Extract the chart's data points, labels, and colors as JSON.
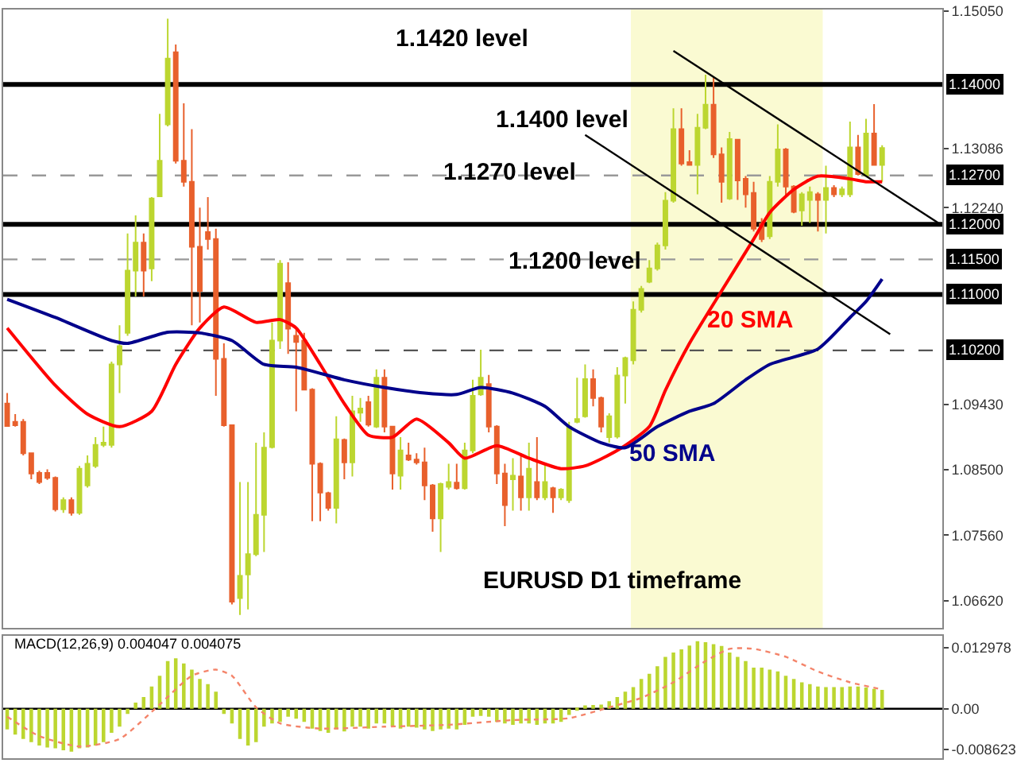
{
  "chart_data": [
    {
      "type": "candlestick",
      "categories": [
        null,
        null,
        null,
        null,
        null,
        null,
        null,
        null,
        null,
        null,
        null,
        null,
        null,
        null,
        null,
        null,
        null,
        null,
        null,
        null,
        null,
        null,
        null,
        null,
        null,
        null,
        null,
        null,
        null,
        null,
        null,
        null,
        null,
        null,
        null,
        null,
        null,
        null,
        null,
        null,
        null,
        null,
        null,
        null,
        null,
        null,
        null,
        null,
        null,
        null,
        null,
        null,
        null,
        null,
        null,
        null,
        null,
        null,
        null,
        null,
        null,
        null,
        null,
        null,
        null,
        null,
        null,
        null,
        null,
        null,
        null,
        null,
        null,
        null,
        null,
        null,
        null,
        null,
        null,
        null,
        null,
        null,
        null,
        null,
        null,
        null,
        null,
        null,
        null,
        null,
        null,
        null,
        null,
        null,
        null,
        null,
        null,
        null,
        null,
        null,
        null,
        null,
        null,
        null,
        null,
        null,
        null,
        null,
        null,
        null,
        null,
        null,
        null,
        null,
        null,
        null,
        null
      ],
      "ohlc": [
        [
          1.0944,
          1.0959,
          1.0911,
          1.0912
        ],
        [
          1.0918,
          1.0929,
          1.0911,
          1.0913
        ],
        [
          1.0918,
          1.0922,
          1.087,
          1.0873
        ],
        [
          1.0873,
          1.0874,
          1.0836,
          1.0844
        ],
        [
          1.0845,
          1.0848,
          1.0829,
          1.0832
        ],
        [
          1.0845,
          1.085,
          1.0835,
          1.0838
        ],
        [
          1.0838,
          1.084,
          1.079,
          1.0793
        ],
        [
          1.0793,
          1.081,
          1.0788,
          1.0806
        ],
        [
          1.0806,
          1.081,
          1.0784,
          1.0788
        ],
        [
          1.0788,
          1.0855,
          1.0785,
          1.0851
        ],
        [
          1.0827,
          1.087,
          1.0824,
          1.0858
        ],
        [
          1.0855,
          1.0896,
          1.0852,
          1.0885
        ],
        [
          1.0885,
          1.0911,
          1.0882,
          1.0888
        ],
        [
          1.0885,
          1.1004,
          1.0881,
          1.1
        ],
        [
          1.1,
          1.1056,
          1.0959,
          1.1026
        ],
        [
          1.1045,
          1.1187,
          1.1041,
          1.1134
        ],
        [
          1.1134,
          1.1213,
          1.1097,
          1.1174
        ],
        [
          1.1174,
          1.1187,
          1.1097,
          1.1134
        ],
        [
          1.1137,
          1.1239,
          1.1119,
          1.1237
        ],
        [
          1.124,
          1.1358,
          1.1239,
          1.1291
        ],
        [
          1.1343,
          1.1494,
          1.134,
          1.1437
        ],
        [
          1.1446,
          1.1457,
          1.1287,
          1.1291
        ],
        [
          1.1291,
          1.1373,
          1.1254,
          1.1261
        ],
        [
          1.1261,
          1.1336,
          1.1056,
          1.1168
        ],
        [
          1.1168,
          1.1224,
          1.106,
          1.1105
        ],
        [
          1.1189,
          1.1239,
          1.1164,
          1.1179
        ],
        [
          1.1179,
          1.1194,
          1.0955,
          1.1008
        ],
        [
          1.1008,
          1.103,
          1.0911,
          1.0913
        ],
        [
          1.0913,
          1.0913,
          1.0657,
          1.0661
        ],
        [
          1.0666,
          1.0832,
          1.0642,
          1.0698
        ],
        [
          1.07,
          1.0832,
          1.065,
          1.0729
        ],
        [
          1.0729,
          1.0888,
          1.0726,
          1.0785
        ],
        [
          1.0785,
          1.0903,
          1.0732,
          1.0881
        ],
        [
          1.0882,
          1.106,
          1.088,
          1.1034
        ],
        [
          1.1034,
          1.1149,
          1.1022,
          1.1144
        ],
        [
          1.1116,
          1.1146,
          1.1015,
          1.1051
        ],
        [
          1.1041,
          1.1052,
          1.0933,
          1.1032
        ],
        [
          1.1034,
          1.1045,
          1.0963,
          1.0964
        ],
        [
          1.0964,
          1.0966,
          1.0776,
          1.0858
        ],
        [
          1.0858,
          1.086,
          1.0776,
          1.0817
        ],
        [
          1.0816,
          1.0818,
          1.0791,
          1.0795
        ],
        [
          1.0795,
          1.0926,
          1.0773,
          1.0893
        ],
        [
          1.0892,
          1.0894,
          1.0836,
          1.086
        ],
        [
          1.086,
          1.0955,
          1.084,
          1.0933
        ],
        [
          1.0931,
          1.0952,
          1.0918,
          1.0937
        ],
        [
          1.0946,
          1.0955,
          1.0911,
          1.0914
        ],
        [
          1.0911,
          1.0993,
          1.0909,
          1.0981
        ],
        [
          1.0981,
          1.0993,
          1.0903,
          1.0911
        ],
        [
          1.0911,
          1.0912,
          1.0821,
          1.0844
        ],
        [
          1.0841,
          1.0896,
          1.0821,
          1.0877
        ],
        [
          1.087,
          1.0888,
          1.0862,
          1.0864
        ],
        [
          1.0864,
          1.0873,
          1.0857,
          1.086
        ],
        [
          1.086,
          1.0881,
          1.0806,
          1.0827
        ],
        [
          1.0827,
          1.0829,
          1.0761,
          1.078
        ],
        [
          1.078,
          1.0831,
          1.0732,
          1.0829
        ],
        [
          1.0825,
          1.0858,
          1.0821,
          1.0832
        ],
        [
          1.0831,
          1.0858,
          1.0821,
          1.0823
        ],
        [
          1.0823,
          1.0888,
          1.0821,
          1.0877
        ],
        [
          1.0877,
          1.0978,
          1.0873,
          1.0955
        ],
        [
          1.0957,
          1.1021,
          1.0955,
          1.0981
        ],
        [
          1.0972,
          1.0985,
          1.0903,
          1.0911
        ],
        [
          1.0911,
          1.0913,
          1.0829,
          1.0844
        ],
        [
          1.0844,
          1.0858,
          1.0769,
          1.0799
        ],
        [
          1.0836,
          1.0866,
          1.0791,
          1.0841
        ],
        [
          1.084,
          1.0873,
          1.0791,
          1.081
        ],
        [
          1.081,
          1.0888,
          1.0791,
          1.0851
        ],
        [
          1.0832,
          1.0896,
          1.0806,
          1.081
        ],
        [
          1.081,
          1.0858,
          1.0806,
          1.0832
        ],
        [
          1.0823,
          1.0825,
          1.0788,
          1.081
        ],
        [
          1.081,
          1.0823,
          1.0806,
          1.0821
        ],
        [
          1.0806,
          1.0918,
          1.0802,
          1.0911
        ],
        [
          1.0918,
          1.0981,
          1.0916,
          1.0922
        ],
        [
          1.0926,
          1.1,
          1.0924,
          1.0979
        ],
        [
          1.0979,
          1.0993,
          1.094,
          1.0952
        ],
        [
          1.0952,
          1.0954,
          1.0903,
          1.0911
        ],
        [
          1.0896,
          1.093,
          1.0888,
          1.0926
        ],
        [
          1.0897,
          1.0996,
          1.0894,
          1.0984
        ],
        [
          1.0984,
          1.1011,
          1.0944,
          1.1009
        ],
        [
          1.1006,
          1.109,
          1.1,
          1.1078
        ],
        [
          1.1078,
          1.1112,
          1.1074,
          1.1108
        ],
        [
          1.1118,
          1.1149,
          1.1116,
          1.1137
        ],
        [
          1.1137,
          1.1174,
          1.1134,
          1.117
        ],
        [
          1.117,
          1.1246,
          1.1164,
          1.1234
        ],
        [
          1.1234,
          1.1366,
          1.1231,
          1.1336
        ],
        [
          1.1336,
          1.1366,
          1.1284,
          1.1287
        ],
        [
          1.1289,
          1.1306,
          1.1284,
          1.1285
        ],
        [
          1.1285,
          1.1358,
          1.1243,
          1.1338
        ],
        [
          1.1338,
          1.1414,
          1.1336,
          1.1371
        ],
        [
          1.1371,
          1.141,
          1.1295,
          1.13
        ],
        [
          1.13,
          1.131,
          1.1231,
          1.1261
        ],
        [
          1.1237,
          1.1332,
          1.1235,
          1.1322
        ],
        [
          1.1321,
          1.1322,
          1.1235,
          1.1263
        ],
        [
          1.1265,
          1.1269,
          1.1224,
          1.1243
        ],
        [
          1.1245,
          1.1261,
          1.119,
          1.1194
        ],
        [
          1.1201,
          1.1209,
          1.1175,
          1.1179
        ],
        [
          1.1183,
          1.1269,
          1.1179,
          1.1261
        ],
        [
          1.1261,
          1.1343,
          1.1254,
          1.1307
        ],
        [
          1.1307,
          1.1309,
          1.1239,
          1.1254
        ],
        [
          1.1254,
          1.1256,
          1.1216,
          1.1218
        ],
        [
          1.122,
          1.1246,
          1.1198,
          1.1243
        ],
        [
          1.1235,
          1.1254,
          1.1202,
          1.1246
        ],
        [
          1.1243,
          1.1246,
          1.119,
          1.1235
        ],
        [
          1.1235,
          1.1284,
          1.1187,
          1.1252
        ],
        [
          1.1252,
          1.1256,
          1.1239,
          1.1243
        ],
        [
          1.1243,
          1.1254,
          1.1239,
          1.125
        ],
        [
          1.1243,
          1.1347,
          1.1239,
          1.131
        ],
        [
          1.131,
          1.1328,
          1.127,
          1.1272
        ],
        [
          1.127,
          1.1351,
          1.1269,
          1.133
        ],
        [
          1.133,
          1.1372,
          1.1284,
          1.1285
        ],
        [
          1.1285,
          1.1313,
          1.1261,
          1.1309
        ],
        null,
        null,
        null,
        null,
        null,
        null,
        null
      ],
      "colors": [
        "#e8602c",
        "#e8602c",
        "#e8602c",
        "#e8602c",
        "#e8602c",
        "#e8602c",
        "#e8602c",
        "#bcd630",
        "#e8602c",
        "#bcd630",
        "#bcd630",
        "#bcd630",
        "#bcd630",
        "#bcd630",
        "#bcd630",
        "#bcd630",
        "#bcd630",
        "#e8602c",
        "#bcd630",
        "#bcd630",
        "#bcd630",
        "#e8602c",
        "#e8602c",
        "#e8602c",
        "#e8602c",
        "#e8602c",
        "#e8602c",
        "#e8602c",
        "#e8602c",
        "#bcd630",
        "#bcd630",
        "#bcd630",
        "#bcd630",
        "#bcd630",
        "#bcd630",
        "#e8602c",
        "#e8602c",
        "#e8602c",
        "#e8602c",
        "#e8602c",
        "#e8602c",
        "#bcd630",
        "#e8602c",
        "#bcd630",
        "#bcd630",
        "#e8602c",
        "#bcd630",
        "#e8602c",
        "#e8602c",
        "#bcd630",
        "#e8602c",
        "#e8602c",
        "#e8602c",
        "#e8602c",
        "#bcd630",
        "#bcd630",
        "#e8602c",
        "#bcd630",
        "#bcd630",
        "#bcd630",
        "#e8602c",
        "#e8602c",
        "#e8602c",
        "#bcd630",
        "#e8602c",
        "#bcd630",
        "#e8602c",
        "#bcd630",
        "#e8602c",
        "#bcd630",
        "#bcd630",
        "#bcd630",
        "#bcd630",
        "#e8602c",
        "#e8602c",
        "#bcd630",
        "#bcd630",
        "#bcd630",
        "#bcd630",
        "#bcd630",
        "#bcd630",
        "#bcd630",
        "#bcd630",
        "#bcd630",
        "#e8602c",
        "#e8602c",
        "#bcd630",
        "#bcd630",
        "#e8602c",
        "#e8602c",
        "#bcd630",
        "#e8602c",
        "#e8602c",
        "#e8602c",
        "#e8602c",
        "#bcd630",
        "#bcd630",
        "#e8602c",
        "#e8602c",
        "#bcd630",
        "#bcd630",
        "#e8602c",
        "#bcd630",
        "#e8602c",
        "#bcd630",
        "#bcd630",
        "#e8602c",
        "#bcd630",
        "#e8602c",
        "#bcd630",
        null,
        null,
        null,
        null,
        null,
        null,
        null
      ],
      "series": [
        {
          "name": "20 SMA",
          "type": "line",
          "color": "#ff0000",
          "values": [
            1.1052,
            null,
            null,
            null,
            null,
            null,
            1.097,
            null,
            null,
            null,
            1.0929,
            null,
            null,
            null,
            1.0911,
            null,
            null,
            null,
            1.0933,
            null,
            null,
            1.1,
            null,
            null,
            1.1052,
            null,
            null,
            1.1082,
            null,
            null,
            null,
            1.106,
            null,
            null,
            1.1064,
            null,
            1.1052,
            null,
            null,
            1.1,
            null,
            null,
            1.0944,
            null,
            null,
            1.0899,
            null,
            null,
            1.0896,
            null,
            null,
            1.0922,
            null,
            null,
            null,
            1.0888,
            null,
            1.0866,
            null,
            null,
            null,
            1.0884,
            null,
            null,
            null,
            1.0866,
            null,
            null,
            null,
            1.0851,
            null,
            null,
            1.0855,
            null,
            null,
            null,
            1.0877,
            null,
            null,
            null,
            1.0911,
            null,
            1.0963,
            null,
            null,
            1.103,
            null,
            null,
            null,
            1.1105,
            null,
            null,
            null,
            1.1179,
            null,
            1.1217,
            null,
            null,
            1.125,
            null,
            null,
            1.1269,
            null,
            null,
            null,
            1.1265,
            null,
            1.1261,
            null,
            1.1261,
            null,
            null,
            null,
            null,
            null,
            null,
            null
          ]
        },
        {
          "name": "50 SMA",
          "type": "line",
          "color": "#00008b",
          "values": [
            1.1093,
            null,
            null,
            null,
            null,
            null,
            1.1067,
            null,
            null,
            null,
            null,
            null,
            null,
            1.1034,
            null,
            1.103,
            null,
            null,
            null,
            null,
            1.1046,
            null,
            null,
            null,
            1.1045,
            null,
            null,
            null,
            1.1034,
            null,
            null,
            null,
            1.1,
            null,
            null,
            null,
            1.0996,
            null,
            null,
            null,
            null,
            null,
            1.0978,
            null,
            null,
            null,
            null,
            1.0967,
            null,
            null,
            null,
            null,
            1.0959,
            null,
            null,
            null,
            1.0957,
            null,
            null,
            1.0967,
            null,
            null,
            null,
            1.0959,
            null,
            null,
            null,
            1.094,
            null,
            null,
            1.0911,
            null,
            null,
            null,
            1.0888,
            null,
            null,
            1.0881,
            null,
            null,
            null,
            1.0911,
            null,
            null,
            null,
            1.0933,
            null,
            null,
            1.0944,
            null,
            null,
            null,
            1.0978,
            null,
            null,
            1.1,
            null,
            null,
            null,
            null,
            null,
            1.1022,
            null,
            null,
            null,
            1.1067,
            null,
            1.109,
            null,
            1.1122,
            null,
            null,
            null,
            null,
            null,
            null,
            null
          ]
        },
        {
          "type": "line",
          "color": "#000000",
          "values": [
            null,
            null,
            null,
            null,
            null,
            null,
            null,
            null,
            null,
            null,
            null,
            null,
            null,
            null,
            null,
            null,
            null,
            null,
            null,
            null,
            null,
            null,
            null,
            null,
            null,
            null,
            null,
            null,
            null,
            null,
            null,
            null,
            null,
            null,
            null,
            null,
            null,
            null,
            null,
            null,
            null,
            null,
            null,
            null,
            null,
            null,
            null,
            null,
            null,
            null,
            null,
            null,
            null,
            null,
            null,
            null,
            null,
            null,
            null,
            null,
            null,
            null,
            null,
            null,
            null,
            null,
            null,
            null,
            null,
            null,
            null,
            null,
            null,
            null,
            null,
            null,
            null,
            null,
            null,
            null,
            null,
            null,
            null,
            1.1448,
            null,
            null,
            null,
            null,
            null,
            null,
            null,
            null,
            null,
            null,
            null,
            null,
            null,
            null,
            null,
            null,
            null,
            null,
            null,
            null,
            null,
            null,
            null,
            null,
            null,
            null,
            null,
            null,
            null,
            null,
            null,
            null,
            1.1202
          ]
        },
        {
          "type": "line",
          "color": "#000000",
          "values": [
            null,
            null,
            null,
            null,
            null,
            null,
            null,
            null,
            null,
            null,
            null,
            null,
            null,
            null,
            null,
            null,
            null,
            null,
            null,
            null,
            null,
            null,
            null,
            null,
            null,
            null,
            null,
            null,
            null,
            null,
            null,
            null,
            null,
            null,
            null,
            null,
            null,
            null,
            null,
            null,
            null,
            null,
            null,
            null,
            null,
            null,
            null,
            null,
            null,
            null,
            null,
            null,
            null,
            null,
            null,
            null,
            null,
            null,
            null,
            null,
            null,
            null,
            null,
            null,
            null,
            null,
            null,
            null,
            null,
            null,
            null,
            null,
            1.1328,
            null,
            null,
            null,
            null,
            null,
            null,
            null,
            null,
            null,
            null,
            null,
            null,
            null,
            null,
            null,
            null,
            null,
            null,
            null,
            null,
            null,
            null,
            null,
            null,
            null,
            null,
            null,
            null,
            null,
            null,
            null,
            null,
            null,
            null,
            null,
            null,
            null,
            1.1043,
            null,
            null,
            null,
            null,
            null,
            null
          ]
        }
      ],
      "ylim": [
        1.0623,
        1.1507
      ],
      "yticks": [
        {
          "value": 1.1505,
          "label": "1.15050"
        },
        {
          "value": 1.13086,
          "label": "1.13086"
        },
        {
          "value": 1.1224,
          "label": "1.12240"
        },
        {
          "value": 1.0943,
          "label": "1.09430"
        },
        {
          "value": 1.085,
          "label": "1.08500"
        },
        {
          "value": 1.0756,
          "label": "1.07560"
        },
        {
          "value": 1.0662,
          "label": "1.06620"
        }
      ],
      "ref_lines": [
        {
          "axis": "y",
          "value": 1.14,
          "label": "1.14000",
          "color": "#000000",
          "line_style": "solid"
        },
        {
          "axis": "y",
          "value": 1.127,
          "label": "1.12700",
          "color": "#999999",
          "line_style": "dashed"
        },
        {
          "axis": "y",
          "value": 1.12,
          "label": "1.12000",
          "color": "#000000",
          "line_style": "solid"
        },
        {
          "axis": "y",
          "value": 1.115,
          "label": "1.11500",
          "color": "#999999",
          "line_style": "dashed"
        },
        {
          "axis": "y",
          "value": 1.11,
          "label": "1.11000",
          "color": "#000000",
          "line_style": "solid"
        },
        {
          "axis": "y",
          "value": 1.102,
          "label": "1.10200",
          "color": "#555555",
          "line_style": "dashed"
        }
      ],
      "annotations": [
        "1.1420 level",
        "1.1400 level",
        "1.1270 level",
        "1.1200 level",
        "EURUSD D1 timeframe"
      ],
      "tick_labels": "y"
    },
    {
      "type": "bar",
      "title": "MACD(12,26,9) 0.004047 0.004075",
      "categories": [
        null,
        null,
        null,
        null,
        null,
        null,
        null,
        null,
        null,
        null,
        null,
        null,
        null,
        null,
        null,
        null,
        null,
        null,
        null,
        null,
        null,
        null,
        null,
        null,
        null,
        null,
        null,
        null,
        null,
        null,
        null,
        null,
        null,
        null,
        null,
        null,
        null,
        null,
        null,
        null,
        null,
        null,
        null,
        null,
        null,
        null,
        null,
        null,
        null,
        null,
        null,
        null,
        null,
        null,
        null,
        null,
        null,
        null,
        null,
        null,
        null,
        null,
        null,
        null,
        null,
        null,
        null,
        null,
        null,
        null,
        null,
        null,
        null,
        null,
        null,
        null,
        null,
        null,
        null,
        null,
        null,
        null,
        null,
        null,
        null,
        null,
        null,
        null,
        null,
        null,
        null,
        null,
        null,
        null,
        null,
        null,
        null,
        null,
        null,
        null,
        null,
        null,
        null,
        null,
        null,
        null,
        null,
        null,
        null,
        null,
        null,
        null,
        null,
        null,
        null,
        null,
        null
      ],
      "series": [
        {
          "type": "bar",
          "color": "#bcd630",
          "values": [
            -0.0044,
            -0.0055,
            -0.0064,
            -0.0071,
            -0.0078,
            -0.0082,
            -0.0084,
            -0.0088,
            -0.0091,
            -0.0084,
            -0.0082,
            -0.0078,
            -0.0071,
            -0.0051,
            -0.0038,
            -0.0011,
            0.0013,
            0.0025,
            0.0047,
            0.007,
            0.0101,
            0.0107,
            0.0096,
            0.0083,
            0.0063,
            0.0052,
            0.0036,
            -0.0011,
            -0.0031,
            -0.0064,
            -0.0078,
            -0.0071,
            -0.0038,
            -0.0031,
            -0.0028,
            -0.0017,
            -0.0021,
            -0.0028,
            -0.0042,
            -0.0047,
            -0.0051,
            -0.0044,
            -0.0048,
            -0.0038,
            -0.0038,
            -0.0042,
            -0.0031,
            -0.0031,
            -0.0038,
            -0.0042,
            -0.0038,
            -0.004,
            -0.0044,
            -0.0047,
            -0.0044,
            -0.0042,
            -0.0044,
            -0.0034,
            -0.0017,
            -0.0015,
            -0.0017,
            -0.0028,
            -0.0031,
            -0.0034,
            -0.0031,
            -0.0031,
            -0.0034,
            -0.0031,
            -0.0031,
            -0.0028,
            -0.0013,
            -0.0004,
            0.0007,
            0.0008,
            0.0009,
            0.0016,
            0.0025,
            0.0036,
            0.0046,
            0.0063,
            0.0074,
            0.009,
            0.011,
            0.0119,
            0.0126,
            0.0134,
            0.0143,
            0.0141,
            0.0137,
            0.0133,
            0.0119,
            0.011,
            0.0101,
            0.0087,
            0.0087,
            0.0083,
            0.0079,
            0.007,
            0.0063,
            0.0056,
            0.0052,
            0.0047,
            0.0046,
            0.0046,
            0.0046,
            0.0047,
            0.0047,
            0.0045,
            0.0042,
            0.004,
            null,
            null,
            null,
            null,
            null,
            null,
            null
          ]
        },
        {
          "type": "line",
          "color": "#f4846a",
          "line_style": "dotted",
          "values": [
            -0.0017,
            null,
            null,
            null,
            -0.0058,
            null,
            null,
            null,
            null,
            -0.008,
            null,
            null,
            null,
            null,
            -0.0064,
            null,
            null,
            null,
            null,
            0.0009,
            null,
            null,
            null,
            0.007,
            null,
            null,
            0.0083,
            null,
            0.007,
            null,
            null,
            0.0003,
            null,
            null,
            -0.0031,
            null,
            null,
            null,
            null,
            -0.0042,
            null,
            null,
            null,
            null,
            null,
            null,
            null,
            -0.0038,
            null,
            null,
            null,
            null,
            null,
            null,
            null,
            -0.0034,
            null,
            null,
            null,
            null,
            null,
            null,
            null,
            -0.0024,
            null,
            null,
            null,
            null,
            null,
            null,
            -0.002,
            null,
            null,
            null,
            null,
            0.0003,
            null,
            null,
            null,
            0.0023,
            null,
            null,
            null,
            0.0056,
            null,
            null,
            null,
            0.0101,
            null,
            null,
            0.0127,
            null,
            null,
            0.0127,
            null,
            null,
            null,
            0.011,
            null,
            null,
            null,
            0.0079,
            null,
            null,
            null,
            0.0056,
            null,
            null,
            null,
            0.0041,
            null,
            null,
            null,
            null,
            null,
            null,
            null
          ]
        }
      ],
      "ylim": [
        -0.0105,
        0.0154
      ],
      "yticks": [
        0.012978,
        {
          "value": 0,
          "label": "0.00"
        },
        -0.008623
      ],
      "ref_lines": [
        {
          "axis": "y",
          "value": 0,
          "color": "#000000",
          "line_style": "solid"
        }
      ],
      "tick_labels": "y"
    }
  ]
}
